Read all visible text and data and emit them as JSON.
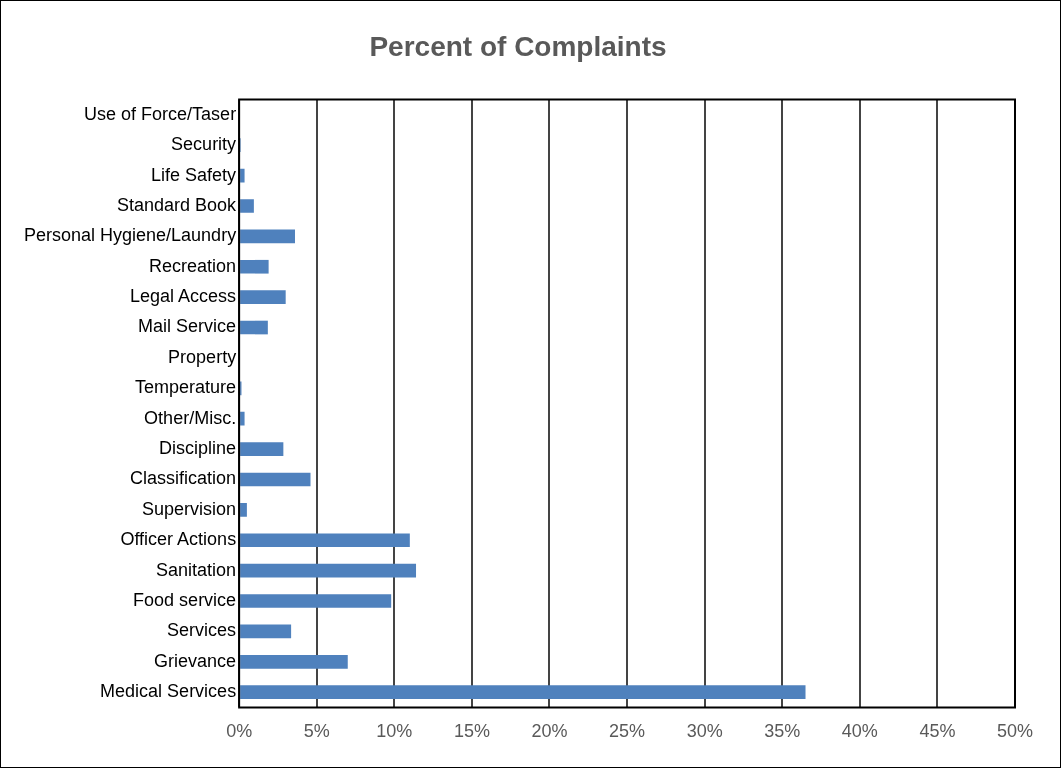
{
  "chart_data": {
    "type": "bar",
    "orientation": "horizontal",
    "title": "Percent of Complaints",
    "categories": [
      "Use of Force/Taser",
      "Security",
      "Life Safety",
      "Standard Book",
      "Personal Hygiene/Laundry",
      "Recreation",
      "Legal Access",
      "Mail Service",
      "Property",
      "Temperature",
      "Other/Misc.",
      "Discipline",
      "Classification",
      "Supervision",
      "Officer Actions",
      "Sanitation",
      "Food service",
      "Services",
      "Grievance",
      "Medical Services"
    ],
    "values": [
      0,
      0.1,
      0.35,
      0.95,
      3.6,
      1.9,
      3,
      1.85,
      0,
      0.15,
      0.35,
      2.85,
      4.6,
      0.5,
      11,
      11.4,
      9.8,
      3.35,
      7,
      36.5
    ],
    "color": "#4f81bd",
    "xlim": [
      0,
      50
    ],
    "xticks": [
      {
        "value": 0,
        "label": "0%"
      },
      {
        "value": 5,
        "label": "5%"
      },
      {
        "value": 10,
        "label": "10%"
      },
      {
        "value": 15,
        "label": "15%"
      },
      {
        "value": 20,
        "label": "20%"
      },
      {
        "value": 25,
        "label": "25%"
      },
      {
        "value": 30,
        "label": "30%"
      },
      {
        "value": 35,
        "label": "35%"
      },
      {
        "value": 40,
        "label": "40%"
      },
      {
        "value": 45,
        "label": "45%"
      },
      {
        "value": 50,
        "label": "50%"
      }
    ],
    "grid": "x",
    "legend": false
  }
}
